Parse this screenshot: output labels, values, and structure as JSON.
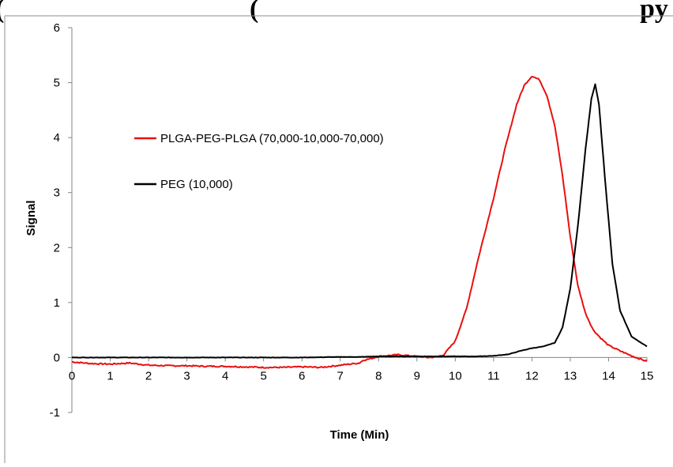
{
  "header": {
    "left_text": "(",
    "middle_text": "(",
    "right_text": "py"
  },
  "chart_data": {
    "type": "line",
    "title": "",
    "xlabel": "Time (Min)",
    "ylabel": "Signal",
    "xlim": [
      0,
      15
    ],
    "ylim": [
      -1,
      6
    ],
    "xticks": [
      0,
      1,
      2,
      3,
      4,
      5,
      6,
      7,
      8,
      9,
      10,
      11,
      12,
      13,
      14,
      15
    ],
    "yticks": [
      -1,
      0,
      1,
      2,
      3,
      4,
      5,
      6
    ],
    "grid": false,
    "legend_position": "center-left",
    "series": [
      {
        "name": "PLGA-PEG-PLGA (70,000-10,000-70,000)",
        "color": "#e8100f",
        "x": [
          0,
          0.5,
          1,
          1.5,
          2,
          2.5,
          3,
          3.5,
          4,
          4.5,
          5,
          5.5,
          6,
          6.5,
          7,
          7.5,
          7.6,
          7.8,
          8,
          8.5,
          9,
          9.3,
          9.5,
          9.7,
          10,
          10.3,
          10.6,
          11,
          11.3,
          11.6,
          11.8,
          12,
          12.2,
          12.4,
          12.6,
          12.8,
          13,
          13.2,
          13.4,
          13.6,
          13.8,
          14,
          14.3,
          14.6,
          15
        ],
        "y": [
          -0.08,
          -0.11,
          -0.12,
          -0.1,
          -0.14,
          -0.15,
          -0.15,
          -0.16,
          -0.16,
          -0.17,
          -0.18,
          -0.18,
          -0.17,
          -0.18,
          -0.14,
          -0.1,
          -0.05,
          -0.02,
          0.02,
          0.05,
          0.02,
          0.0,
          0.01,
          0.05,
          0.3,
          0.9,
          1.8,
          2.9,
          3.8,
          4.6,
          4.95,
          5.12,
          5.05,
          4.75,
          4.2,
          3.3,
          2.2,
          1.3,
          0.8,
          0.5,
          0.35,
          0.22,
          0.12,
          0.03,
          -0.07
        ]
      },
      {
        "name": "PEG (10,000)",
        "color": "#000000",
        "x": [
          0,
          1,
          2,
          3,
          4,
          5,
          6,
          7,
          7.5,
          8,
          8.5,
          9,
          9.5,
          10,
          10.5,
          11,
          11.4,
          11.7,
          12,
          12.3,
          12.6,
          12.8,
          13,
          13.2,
          13.4,
          13.55,
          13.65,
          13.75,
          13.9,
          14.1,
          14.3,
          14.6,
          15
        ],
        "y": [
          0.0,
          0.0,
          0.0,
          0.0,
          0.0,
          0.0,
          0.0,
          0.01,
          0.01,
          0.02,
          0.02,
          0.02,
          0.02,
          0.02,
          0.02,
          0.03,
          0.06,
          0.12,
          0.17,
          0.2,
          0.27,
          0.55,
          1.25,
          2.4,
          3.8,
          4.7,
          4.97,
          4.6,
          3.3,
          1.7,
          0.85,
          0.38,
          0.2
        ]
      }
    ]
  }
}
